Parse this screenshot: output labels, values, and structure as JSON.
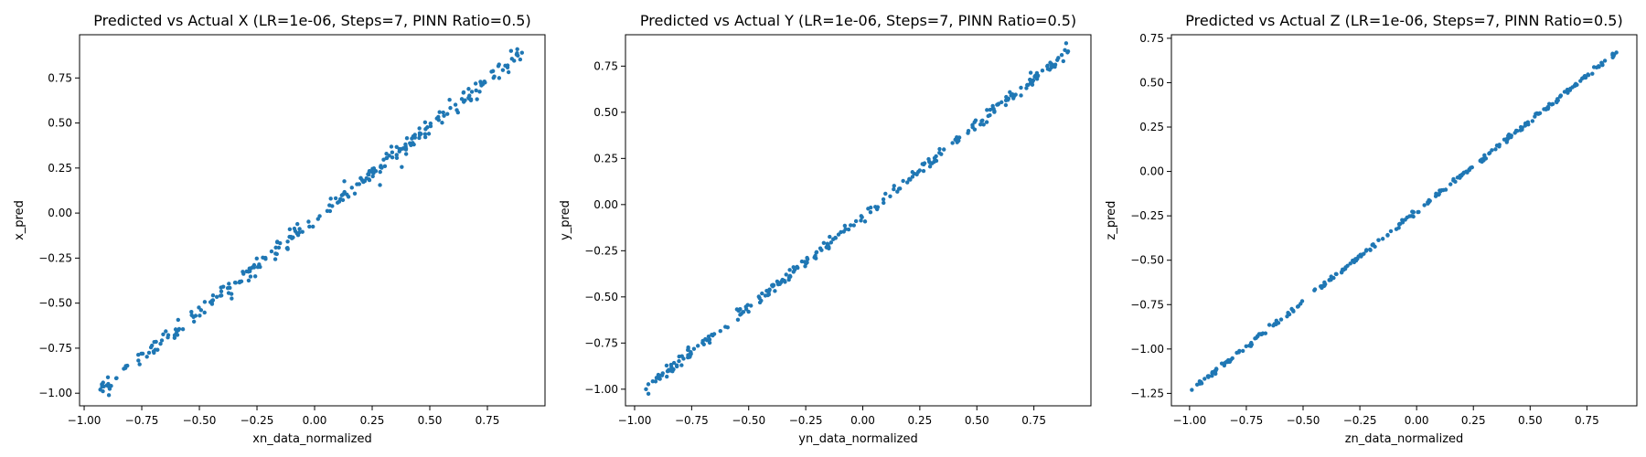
{
  "chart_data": [
    {
      "type": "scatter",
      "title": "Predicted vs Actual X (LR=1e-06, Steps=7, PINN Ratio=0.5)",
      "xlabel": "xn_data_normalized",
      "ylabel": "x_pred",
      "xlim": [
        -1.02,
        1.0
      ],
      "ylim": [
        -1.07,
        0.99
      ],
      "xticks": [
        -1.0,
        -0.75,
        -0.5,
        -0.25,
        0.0,
        0.25,
        0.5,
        0.75
      ],
      "xtick_labels": [
        "−1.00",
        "−0.75",
        "−0.50",
        "−0.25",
        "0.00",
        "0.25",
        "0.50",
        "0.75"
      ],
      "yticks": [
        -1.0,
        -0.75,
        -0.5,
        -0.25,
        0.0,
        0.25,
        0.5,
        0.75
      ],
      "ytick_labels": [
        "−1.00",
        "−0.75",
        "−0.50",
        "−0.25",
        "0.00",
        "0.25",
        "0.50",
        "0.75"
      ],
      "grid": false,
      "color": "#1f77b4",
      "trend": {
        "x_start": -0.93,
        "x_end": 0.9,
        "y_at_start": -0.98,
        "y_at_end": 0.89,
        "spread": 0.05,
        "n_points": 280
      }
    },
    {
      "type": "scatter",
      "title": "Predicted vs Actual Y (LR=1e-06, Steps=7, PINN Ratio=0.5)",
      "xlabel": "yn_data_normalized",
      "ylabel": "y_pred",
      "xlim": [
        -1.04,
        1.0
      ],
      "ylim": [
        -1.09,
        0.92
      ],
      "xticks": [
        -1.0,
        -0.75,
        -0.5,
        -0.25,
        0.0,
        0.25,
        0.5,
        0.75
      ],
      "xtick_labels": [
        "−1.00",
        "−0.75",
        "−0.50",
        "−0.25",
        "0.00",
        "0.25",
        "0.50",
        "0.75"
      ],
      "yticks": [
        -1.0,
        -0.75,
        -0.5,
        -0.25,
        0.0,
        0.25,
        0.5,
        0.75
      ],
      "ytick_labels": [
        "−1.00",
        "−0.75",
        "−0.50",
        "−0.25",
        "0.00",
        "0.25",
        "0.50",
        "0.75"
      ],
      "grid": false,
      "color": "#1f77b4",
      "trend": {
        "x_start": -0.95,
        "x_end": 0.9,
        "y_at_start": -1.0,
        "y_at_end": 0.83,
        "spread": 0.035,
        "n_points": 280
      }
    },
    {
      "type": "scatter",
      "title": "Predicted vs Actual Z (LR=1e-06, Steps=7, PINN Ratio=0.5)",
      "xlabel": "zn_data_normalized",
      "ylabel": "z_pred",
      "xlim": [
        -1.08,
        0.97
      ],
      "ylim": [
        -1.32,
        0.77
      ],
      "xticks": [
        -1.0,
        -0.75,
        -0.5,
        -0.25,
        0.0,
        0.25,
        0.5,
        0.75
      ],
      "xtick_labels": [
        "−1.00",
        "−0.75",
        "−0.50",
        "−0.25",
        "0.00",
        "0.25",
        "0.50",
        "0.75"
      ],
      "yticks": [
        -1.25,
        -1.0,
        -0.75,
        -0.5,
        -0.25,
        0.0,
        0.25,
        0.5,
        0.75
      ],
      "ytick_labels": [
        "−1.25",
        "−1.00",
        "−0.75",
        "−0.50",
        "−0.25",
        "0.00",
        "0.25",
        "0.50",
        "0.75"
      ],
      "grid": false,
      "color": "#1f77b4",
      "trend": {
        "x_start": -0.99,
        "x_end": 0.88,
        "y_at_start": -1.23,
        "y_at_end": 0.67,
        "spread": 0.015,
        "n_points": 280
      }
    }
  ]
}
